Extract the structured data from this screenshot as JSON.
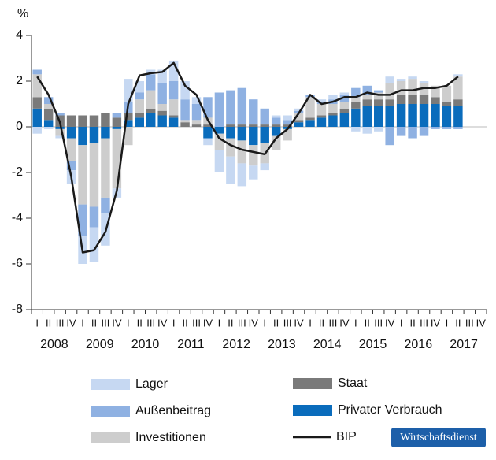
{
  "chart_data": {
    "type": "bar",
    "ylabel": "%",
    "ylim": [
      -8,
      4
    ],
    "yticks": [
      -8,
      -6,
      -4,
      -2,
      0,
      2,
      4
    ],
    "categories": [
      "I",
      "II",
      "III",
      "IV",
      "I",
      "II",
      "III",
      "IV",
      "I",
      "II",
      "III",
      "IV",
      "I",
      "II",
      "III",
      "IV",
      "I",
      "II",
      "III",
      "IV",
      "I",
      "II",
      "III",
      "IV",
      "I",
      "II",
      "III",
      "IV",
      "I",
      "II",
      "III",
      "IV",
      "I",
      "II",
      "III",
      "IV",
      "I",
      "II",
      "III",
      "IV"
    ],
    "year_labels": [
      "2008",
      "2009",
      "2010",
      "2011",
      "2012",
      "2013",
      "2014",
      "2015",
      "2016",
      "2017"
    ],
    "series": [
      {
        "name": "Privater Verbrauch",
        "color": "#0a6cbc",
        "values": [
          0.8,
          0.3,
          -0.1,
          -0.5,
          -0.8,
          -0.7,
          -0.5,
          -0.1,
          0.3,
          0.4,
          0.6,
          0.5,
          0.4,
          0.0,
          0.0,
          -0.5,
          -0.3,
          -0.5,
          -0.6,
          -0.8,
          -0.7,
          -0.4,
          -0.1,
          0.2,
          0.3,
          0.4,
          0.5,
          0.6,
          0.8,
          0.9,
          0.9,
          0.9,
          1.0,
          1.0,
          1.0,
          1.0,
          0.9,
          0.9,
          null,
          null
        ]
      },
      {
        "name": "Staat",
        "color": "#7a7a7a",
        "values": [
          0.5,
          0.5,
          0.5,
          0.5,
          0.5,
          0.5,
          0.6,
          0.4,
          0.3,
          0.2,
          0.2,
          0.2,
          0.1,
          0.2,
          0.1,
          0.1,
          0.0,
          0.1,
          0.1,
          0.1,
          0.1,
          0.1,
          0.1,
          0.1,
          0.1,
          0.1,
          0.1,
          0.2,
          0.3,
          0.3,
          0.3,
          0.3,
          0.4,
          0.4,
          0.4,
          0.3,
          0.2,
          0.3,
          null,
          null
        ]
      },
      {
        "name": "Investitionen",
        "color": "#cdcdcd",
        "values": [
          1.0,
          0.2,
          -0.3,
          -1.0,
          -2.6,
          -2.8,
          -2.6,
          -2.6,
          -0.8,
          0.6,
          0.8,
          0.3,
          0.7,
          0.1,
          0.2,
          0.3,
          -0.7,
          -0.8,
          -1.0,
          -0.9,
          -0.9,
          -0.6,
          -0.5,
          0.3,
          0.9,
          0.5,
          0.4,
          0.3,
          0.2,
          0.2,
          0.3,
          0.7,
          0.6,
          0.7,
          0.5,
          0.5,
          0.7,
          1.0,
          null,
          null
        ]
      },
      {
        "name": "Außenbeitrag",
        "color": "#8fb1e2",
        "values": [
          0.2,
          0.3,
          0.1,
          -0.4,
          -1.4,
          -0.9,
          -0.7,
          0.2,
          0.5,
          0.3,
          0.7,
          0.9,
          0.8,
          0.9,
          0.7,
          0.9,
          1.5,
          1.5,
          1.6,
          1.1,
          0.7,
          0.3,
          0.2,
          0.1,
          0.1,
          0.1,
          0.2,
          0.3,
          0.4,
          0.4,
          0.1,
          -0.8,
          -0.4,
          -0.5,
          -0.4,
          -0.1,
          -0.1,
          -0.1,
          null,
          null
        ]
      },
      {
        "name": "Lager",
        "color": "#c6d8f2",
        "values": [
          -0.3,
          -0.1,
          -0.1,
          -0.6,
          -1.2,
          -1.5,
          -1.4,
          -0.4,
          1.0,
          0.5,
          0.2,
          0.6,
          0.9,
          0.8,
          0.3,
          -0.3,
          -1.0,
          -1.2,
          -1.0,
          -0.6,
          -0.3,
          0.1,
          0.2,
          0.1,
          0.0,
          0.1,
          0.2,
          0.1,
          -0.2,
          -0.3,
          -0.2,
          0.3,
          0.1,
          0.1,
          0.1,
          0.0,
          0.0,
          0.1,
          null,
          null
        ]
      }
    ],
    "line": {
      "name": "BIP",
      "color": "#1a1a1a",
      "values": [
        2.2,
        1.4,
        0.2,
        -2.2,
        -5.5,
        -5.4,
        -4.6,
        -2.8,
        1.0,
        2.25,
        2.35,
        2.4,
        2.8,
        1.8,
        1.4,
        0.3,
        -0.5,
        -0.8,
        -1.0,
        -1.1,
        -1.2,
        -0.5,
        -0.1,
        0.6,
        1.4,
        1.0,
        1.1,
        1.3,
        1.3,
        1.5,
        1.4,
        1.4,
        1.6,
        1.6,
        1.7,
        1.7,
        1.8,
        2.2,
        null,
        null
      ]
    },
    "source_badge": "Wirtschaftsdienst"
  }
}
